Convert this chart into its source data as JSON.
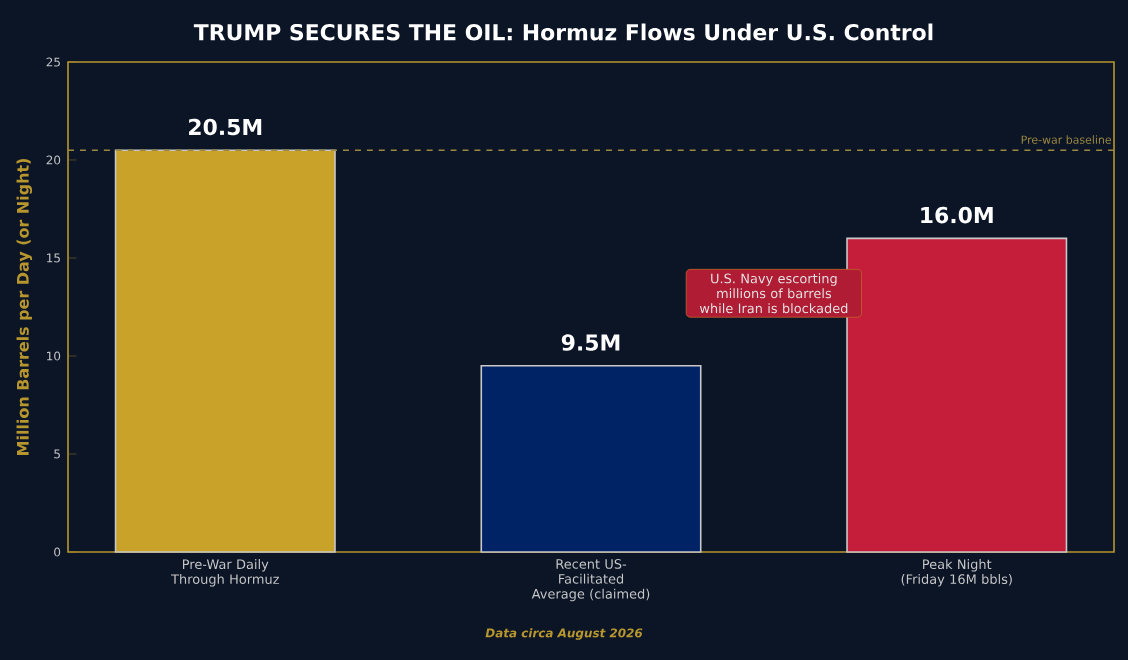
{
  "chart_data": {
    "type": "bar",
    "title": "TRUMP SECURES THE OIL: Hormuz Flows Under U.S. Control",
    "ylabel": "Million Barrels per Day (or Night)",
    "categories": [
      "Pre-War Daily Through Hormuz",
      "Recent US-Facilitated Average (claimed)",
      "Peak Night (Friday 16M bbls)"
    ],
    "values": [
      20.5,
      9.5,
      16.0
    ],
    "colors": [
      "#c9a22a",
      "#002366",
      "#c41e3a"
    ],
    "value_labels": [
      "20.5M",
      "9.5M",
      "16.0M"
    ],
    "ylim": [
      0,
      25
    ],
    "yticks": [
      0,
      5,
      10,
      15,
      20,
      25
    ],
    "grid": false,
    "ref_lines": [
      {
        "axis": "y",
        "value": 20.5,
        "label": "Pre-war baseline",
        "color": "#9c8840",
        "line_style": "dashed"
      }
    ],
    "annotations": [
      "U.S. Navy escorting millions of barrels while Iran is blockaded",
      "Data circa August 2026"
    ]
  }
}
